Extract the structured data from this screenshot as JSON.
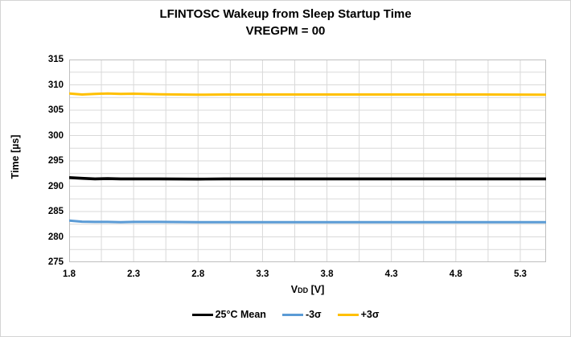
{
  "chart_data": {
    "type": "line",
    "title": "LFINTOSC Wakeup from Sleep Startup Time",
    "subtitle": "VREGPM = 00",
    "ylabel": "Time [µs]",
    "xlabel_main": "V",
    "xlabel_sub": "DD",
    "xlabel_unit": " [V]",
    "xlim": [
      1.8,
      5.5
    ],
    "ylim": [
      275,
      315
    ],
    "x_ticks": [
      1.8,
      2.3,
      2.8,
      3.3,
      3.8,
      4.3,
      4.8,
      5.3
    ],
    "y_ticks": [
      275,
      280,
      285,
      290,
      295,
      300,
      305,
      310,
      315
    ],
    "x_minor_step": 0.25,
    "y_minor_step": 2.5,
    "grid": true,
    "legend_position": "bottom",
    "colors": {
      "grid": "#d9d9d9",
      "axis_border": "#bfbfbf",
      "mean": "#000000",
      "minus3sigma": "#5b9bd5",
      "plus3sigma": "#ffc000"
    },
    "x": [
      1.8,
      1.9,
      2.0,
      2.1,
      2.2,
      2.3,
      2.5,
      2.8,
      3.0,
      3.5,
      4.0,
      4.5,
      5.0,
      5.5
    ],
    "series": [
      {
        "name": "25°C Mean",
        "color": "#000000",
        "width": 3.6,
        "values": [
          291.7,
          291.55,
          291.45,
          291.5,
          291.45,
          291.45,
          291.45,
          291.4,
          291.45,
          291.45,
          291.45,
          291.45,
          291.45,
          291.45
        ]
      },
      {
        "name": "-3σ",
        "color": "#5b9bd5",
        "width": 3.0,
        "values": [
          283.2,
          283.0,
          282.95,
          282.95,
          282.9,
          282.95,
          282.95,
          282.9,
          282.9,
          282.9,
          282.9,
          282.9,
          282.9,
          282.9
        ]
      },
      {
        "name": "+3σ",
        "color": "#ffc000",
        "width": 3.0,
        "values": [
          308.3,
          308.1,
          308.2,
          308.3,
          308.2,
          308.25,
          308.15,
          308.05,
          308.1,
          308.1,
          308.1,
          308.1,
          308.1,
          308.05
        ]
      }
    ]
  }
}
